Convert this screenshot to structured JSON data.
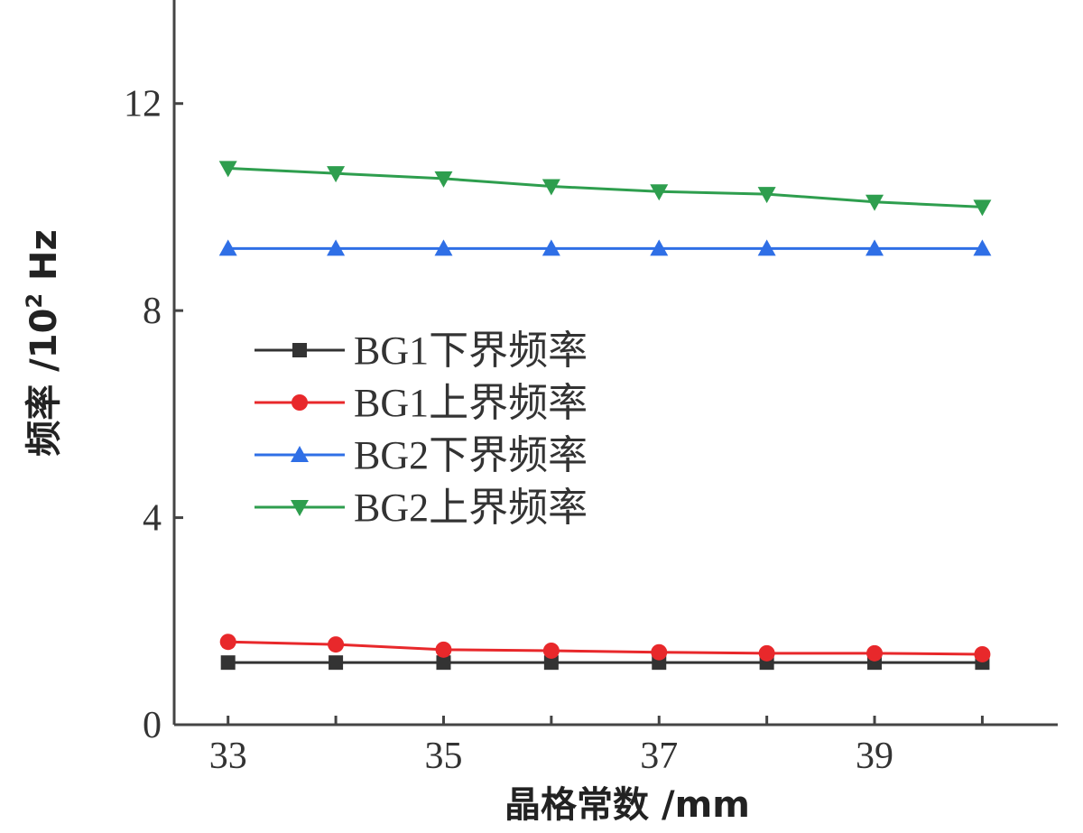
{
  "chart_data": {
    "type": "line",
    "title": "",
    "xlabel": "晶格常数 /mm",
    "ylabel": "频率 /10",
    "ylabel_sup": "2",
    "ylabel_unit": " Hz",
    "x": [
      33,
      34,
      35,
      36,
      37,
      38,
      39,
      40
    ],
    "xlim": [
      32.5,
      40.7
    ],
    "ylim": [
      0,
      14
    ],
    "xticks": [
      33,
      35,
      37,
      39
    ],
    "yticks": [
      0,
      4,
      8,
      12
    ],
    "grid": false,
    "legend_position": "center-left",
    "series": [
      {
        "name": "BG1下界频率",
        "color": "#333333",
        "marker": "square",
        "values": [
          1.2,
          1.2,
          1.2,
          1.2,
          1.2,
          1.2,
          1.2,
          1.2
        ]
      },
      {
        "name": "BG1上界频率",
        "color": "#e8282b",
        "marker": "circle",
        "values": [
          1.6,
          1.55,
          1.45,
          1.43,
          1.4,
          1.38,
          1.38,
          1.36
        ]
      },
      {
        "name": "BG2下界频率",
        "color": "#2f6fe6",
        "marker": "triangle-up",
        "values": [
          9.2,
          9.2,
          9.2,
          9.2,
          9.2,
          9.2,
          9.2,
          9.2
        ]
      },
      {
        "name": "BG2上界频率",
        "color": "#2e9e4e",
        "marker": "triangle-down",
        "values": [
          10.75,
          10.65,
          10.55,
          10.4,
          10.3,
          10.25,
          10.1,
          10.0
        ]
      }
    ]
  }
}
